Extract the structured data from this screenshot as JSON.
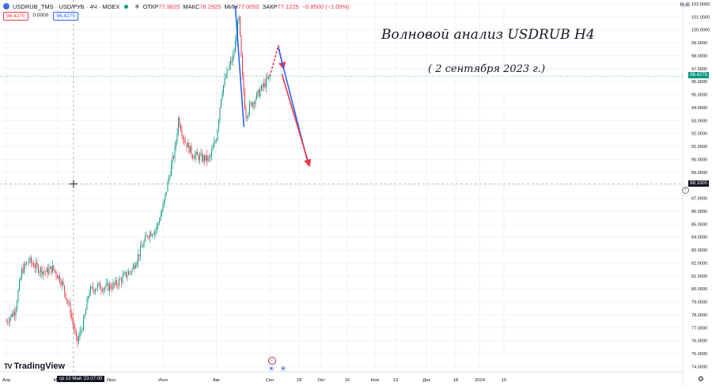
{
  "header": {
    "symbol": "USDRUB_TMS · USD/РУБ · 4Ч · MOEX",
    "ohlc": [
      {
        "key": "ОТКР",
        "val": "77.9825"
      },
      {
        "key": "МАКС",
        "val": "78.2925"
      },
      {
        "key": "МИН",
        "val": "77.0050"
      },
      {
        "key": "ЗАКР",
        "val": "77.1225"
      }
    ],
    "change": "−0.8500 (−1.09%)"
  },
  "price_boxes": {
    "sell": "96.4275",
    "spread": "0.0000",
    "buy": "96.4275"
  },
  "currency": "RUB",
  "annotations": {
    "title": "Волновой анализ  USDRUB H4",
    "date": "( 2 сентября 2023 г.)"
  },
  "brand": "TradingView",
  "crosshair": {
    "time_label": "ср 10 Май '23   07:00",
    "price_label": "88.1000"
  },
  "current_price_label": "96.4275",
  "colors": {
    "up": "#089981",
    "down": "#f23645",
    "wave_blue": "#2962ff",
    "wave_red": "#f23645",
    "grid": "#f0f3fa"
  },
  "chart_data": {
    "type": "candlestick",
    "title": "",
    "y_axis": {
      "range": [
        73.6,
        102.3
      ],
      "ticks": [
        "102.0000",
        "101.0000",
        "100.0000",
        "99.0000",
        "98.0000",
        "97.0000",
        "96.0000",
        "95.0000",
        "94.0000",
        "93.0000",
        "92.0000",
        "91.0000",
        "90.0000",
        "89.0000",
        "88.0000",
        "87.0000",
        "86.0000",
        "85.0000",
        "84.0000",
        "83.0000",
        "82.0000",
        "81.0000",
        "80.0000",
        "79.0000",
        "78.0000",
        "77.0000",
        "76.0000",
        "75.0000",
        "74.0000"
      ],
      "tick_values": [
        102,
        101,
        100,
        99,
        98,
        97,
        96,
        95,
        94,
        93,
        92,
        91,
        90,
        89,
        88,
        87,
        86,
        85,
        84,
        83,
        82,
        81,
        80,
        79,
        78,
        77,
        76,
        75,
        74
      ]
    },
    "x_axis": {
      "labels": [
        "Апр",
        "Май",
        "Июн",
        "Июл",
        "Авг",
        "Сен",
        "18",
        "Окт",
        "16",
        "Ноя",
        "13",
        "Дек",
        "18",
        "2024",
        "15"
      ],
      "label_dates": [
        "2023-04-01",
        "2023-05-01",
        "2023-06-01",
        "2023-07-01",
        "2023-08-01",
        "2023-09-01",
        "2023-09-18",
        "2023-10-01",
        "2023-10-16",
        "2023-11-01",
        "2023-11-13",
        "2023-12-01",
        "2023-12-18",
        "2024-01-01",
        "2024-01-15"
      ]
    },
    "price_path": [
      [
        "2023-04-01",
        77.5
      ],
      [
        "2023-04-06",
        78.3
      ],
      [
        "2023-04-10",
        81.4
      ],
      [
        "2023-04-14",
        82.2
      ],
      [
        "2023-04-19",
        81.6
      ],
      [
        "2023-04-24",
        81.3
      ],
      [
        "2023-04-28",
        81.6
      ],
      [
        "2023-05-03",
        80.6
      ],
      [
        "2023-05-08",
        78.4
      ],
      [
        "2023-05-12",
        75.8
      ],
      [
        "2023-05-16",
        77.5
      ],
      [
        "2023-05-19",
        79.8
      ],
      [
        "2023-05-24",
        80.2
      ],
      [
        "2023-05-29",
        80.1
      ],
      [
        "2023-06-03",
        80.3
      ],
      [
        "2023-06-08",
        80.9
      ],
      [
        "2023-06-13",
        81.5
      ],
      [
        "2023-06-18",
        83.0
      ],
      [
        "2023-06-22",
        84.2
      ],
      [
        "2023-06-27",
        84.6
      ],
      [
        "2023-07-01",
        86.3
      ],
      [
        "2023-07-05",
        89.0
      ],
      [
        "2023-07-08",
        90.8
      ],
      [
        "2023-07-10",
        93.2
      ],
      [
        "2023-07-13",
        91.6
      ],
      [
        "2023-07-18",
        90.4
      ],
      [
        "2023-07-23",
        90.1
      ],
      [
        "2023-07-28",
        90.0
      ],
      [
        "2023-08-01",
        91.7
      ],
      [
        "2023-08-04",
        95.2
      ],
      [
        "2023-08-08",
        97.0
      ],
      [
        "2023-08-11",
        98.0
      ],
      [
        "2023-08-14",
        101.0
      ],
      [
        "2023-08-16",
        96.5
      ],
      [
        "2023-08-18",
        93.4
      ],
      [
        "2023-08-21",
        94.2
      ],
      [
        "2023-08-24",
        94.8
      ],
      [
        "2023-08-28",
        95.6
      ],
      [
        "2023-09-01",
        96.4
      ]
    ],
    "wave_lines": [
      {
        "color": "blue",
        "style": "solid",
        "from": [
          "2023-08-12",
          101.8
        ],
        "to": [
          "2023-08-17",
          92.5
        ]
      },
      {
        "color": "red",
        "style": "dashed",
        "from": [
          "2023-09-01",
          96.4
        ],
        "to": [
          "2023-09-06",
          98.8
        ]
      },
      {
        "color": "red",
        "style": "dashed",
        "from": [
          "2023-09-06",
          98.8
        ],
        "to": [
          "2023-09-09",
          97.0
        ]
      },
      {
        "color": "blue",
        "style": "solid",
        "from": [
          "2023-09-06",
          98.6
        ],
        "to": [
          "2023-09-23",
          89.8
        ]
      },
      {
        "color": "red",
        "style": "solid",
        "from": [
          "2023-09-08",
          96.6
        ],
        "to": [
          "2023-09-24",
          89.5
        ]
      }
    ],
    "crosshair": {
      "date": "2023-05-10",
      "price": 88.1
    },
    "last_price": 96.4275
  }
}
